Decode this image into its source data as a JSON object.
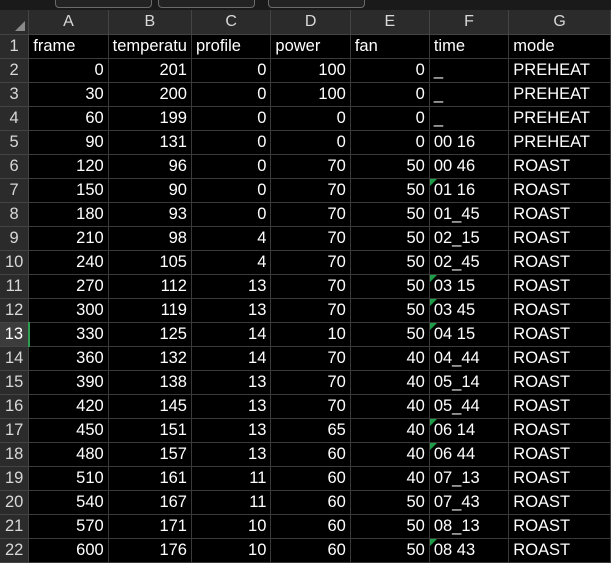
{
  "columns": [
    "A",
    "B",
    "C",
    "D",
    "E",
    "F",
    "G"
  ],
  "active_row": 13,
  "colors": {
    "grid_bg": "#000000",
    "header_bg": "#2b2b2b",
    "note_marker": "#1f9d48",
    "active_row_accent": "#2a9d4f"
  },
  "icons": {
    "corner": "select-all-triangle-icon",
    "note": "note-indicator-icon"
  },
  "rows": [
    {
      "n": "1",
      "cells": [
        "frame",
        "temperatu",
        "profile",
        "power",
        "fan",
        "time",
        "mode"
      ],
      "note": false
    },
    {
      "n": "2",
      "cells": [
        "0",
        "201",
        "0",
        "100",
        "0",
        "_",
        "PREHEAT"
      ],
      "note": false
    },
    {
      "n": "3",
      "cells": [
        "30",
        "200",
        "0",
        "100",
        "0",
        "_",
        "PREHEAT"
      ],
      "note": false
    },
    {
      "n": "4",
      "cells": [
        "60",
        "199",
        "0",
        "0",
        "0",
        "_",
        "PREHEAT"
      ],
      "note": false
    },
    {
      "n": "5",
      "cells": [
        "90",
        "131",
        "0",
        "0",
        "0",
        "00 16",
        "PREHEAT"
      ],
      "note": false
    },
    {
      "n": "6",
      "cells": [
        "120",
        "96",
        "0",
        "70",
        "50",
        "00 46",
        "ROAST"
      ],
      "note": false
    },
    {
      "n": "7",
      "cells": [
        "150",
        "90",
        "0",
        "70",
        "50",
        "01 16",
        "ROAST"
      ],
      "note": true
    },
    {
      "n": "8",
      "cells": [
        "180",
        "93",
        "0",
        "70",
        "50",
        "01_45",
        "ROAST"
      ],
      "note": false
    },
    {
      "n": "9",
      "cells": [
        "210",
        "98",
        "4",
        "70",
        "50",
        "02_15",
        "ROAST"
      ],
      "note": false
    },
    {
      "n": "10",
      "cells": [
        "240",
        "105",
        "4",
        "70",
        "50",
        "02_45",
        "ROAST"
      ],
      "note": false
    },
    {
      "n": "11",
      "cells": [
        "270",
        "112",
        "13",
        "70",
        "50",
        "03 15",
        "ROAST"
      ],
      "note": true
    },
    {
      "n": "12",
      "cells": [
        "300",
        "119",
        "13",
        "70",
        "50",
        "03 45",
        "ROAST"
      ],
      "note": true
    },
    {
      "n": "13",
      "cells": [
        "330",
        "125",
        "14",
        "10",
        "50",
        "04 15",
        "ROAST"
      ],
      "note": true
    },
    {
      "n": "14",
      "cells": [
        "360",
        "132",
        "14",
        "70",
        "40",
        "04_44",
        "ROAST"
      ],
      "note": false
    },
    {
      "n": "15",
      "cells": [
        "390",
        "138",
        "13",
        "70",
        "40",
        "05_14",
        "ROAST"
      ],
      "note": false
    },
    {
      "n": "16",
      "cells": [
        "420",
        "145",
        "13",
        "70",
        "40",
        "05_44",
        "ROAST"
      ],
      "note": false
    },
    {
      "n": "17",
      "cells": [
        "450",
        "151",
        "13",
        "65",
        "40",
        "06 14",
        "ROAST"
      ],
      "note": true
    },
    {
      "n": "18",
      "cells": [
        "480",
        "157",
        "13",
        "60",
        "40",
        "06 44",
        "ROAST"
      ],
      "note": true
    },
    {
      "n": "19",
      "cells": [
        "510",
        "161",
        "11",
        "60",
        "40",
        "07_13",
        "ROAST"
      ],
      "note": false
    },
    {
      "n": "20",
      "cells": [
        "540",
        "167",
        "11",
        "60",
        "50",
        "07_43",
        "ROAST"
      ],
      "note": false
    },
    {
      "n": "21",
      "cells": [
        "570",
        "171",
        "10",
        "60",
        "50",
        "08_13",
        "ROAST"
      ],
      "note": false
    },
    {
      "n": "22",
      "cells": [
        "600",
        "176",
        "10",
        "60",
        "50",
        "08 43",
        "ROAST"
      ],
      "note": true
    }
  ]
}
